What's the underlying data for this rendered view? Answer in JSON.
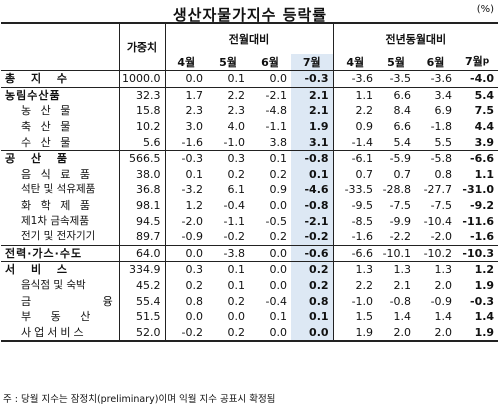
{
  "title": "생산자물가지수 등락률",
  "unit": "(%)",
  "header": {
    "weight": "가중치",
    "group_mom": "전월대비",
    "group_yoy": "전년동월대비",
    "months": [
      "4월",
      "5월",
      "6월",
      "7월"
    ],
    "prelim_mark": "p"
  },
  "rows": [
    {
      "label": "총 지 수",
      "weight": "1000.0",
      "mom": [
        "0.0",
        "0.1",
        "0.0",
        "-0.3"
      ],
      "yoy": [
        "-3.6",
        "-3.5",
        "-3.6",
        "-4.0"
      ]
    },
    {
      "label": "농림수산품",
      "weight": "32.3",
      "mom": [
        "1.7",
        "2.2",
        "-2.1",
        "2.1"
      ],
      "yoy": [
        "1.1",
        "6.6",
        "3.4",
        "5.4"
      ]
    },
    {
      "label": "농 산 물",
      "weight": "15.8",
      "mom": [
        "2.3",
        "2.3",
        "-4.8",
        "2.1"
      ],
      "yoy": [
        "2.2",
        "8.4",
        "6.9",
        "7.5"
      ]
    },
    {
      "label": "축 산 물",
      "weight": "10.2",
      "mom": [
        "3.0",
        "4.0",
        "-1.1",
        "1.9"
      ],
      "yoy": [
        "0.9",
        "6.6",
        "-1.8",
        "4.4"
      ]
    },
    {
      "label": "수 산 물",
      "weight": "5.6",
      "mom": [
        "-1.6",
        "-1.0",
        "3.8",
        "3.1"
      ],
      "yoy": [
        "-1.4",
        "5.4",
        "5.5",
        "3.9"
      ]
    },
    {
      "label": "공 산 품",
      "weight": "566.5",
      "mom": [
        "-0.3",
        "0.3",
        "0.1",
        "-0.8"
      ],
      "yoy": [
        "-6.1",
        "-5.9",
        "-5.8",
        "-6.6"
      ]
    },
    {
      "label": "음 식 료 품",
      "weight": "38.0",
      "mom": [
        "0.1",
        "0.2",
        "0.2",
        "0.1"
      ],
      "yoy": [
        "0.7",
        "0.7",
        "0.8",
        "1.1"
      ]
    },
    {
      "label": "석탄 및 석유제품",
      "weight": "36.8",
      "mom": [
        "-3.2",
        "6.1",
        "0.9",
        "-4.6"
      ],
      "yoy": [
        "-33.5",
        "-28.8",
        "-27.7",
        "-31.0"
      ]
    },
    {
      "label": "화 학 제 품",
      "weight": "98.1",
      "mom": [
        "1.2",
        "-0.4",
        "0.0",
        "-0.8"
      ],
      "yoy": [
        "-9.5",
        "-7.5",
        "-7.5",
        "-9.2"
      ]
    },
    {
      "label": "제1차 금속제품",
      "weight": "94.5",
      "mom": [
        "-2.0",
        "-1.1",
        "-0.5",
        "-2.1"
      ],
      "yoy": [
        "-8.5",
        "-9.9",
        "-10.4",
        "-11.6"
      ]
    },
    {
      "label": "전기 및 전자기기",
      "weight": "89.7",
      "mom": [
        "-0.9",
        "-0.2",
        "0.2",
        "-0.2"
      ],
      "yoy": [
        "-1.6",
        "-2.2",
        "-2.0",
        "-1.6"
      ]
    },
    {
      "label": "전력·가스·수도",
      "weight": "64.0",
      "mom": [
        "0.0",
        "-3.8",
        "0.0",
        "-0.6"
      ],
      "yoy": [
        "-6.6",
        "-10.1",
        "-10.2",
        "-10.3"
      ]
    },
    {
      "label": "서 비 스",
      "weight": "334.9",
      "mom": [
        "0.3",
        "0.1",
        "0.0",
        "0.2"
      ],
      "yoy": [
        "1.3",
        "1.3",
        "1.3",
        "1.2"
      ]
    },
    {
      "label": "음식점 및 숙박",
      "weight": "45.2",
      "mom": [
        "0.2",
        "0.1",
        "0.0",
        "0.2"
      ],
      "yoy": [
        "2.2",
        "2.1",
        "2.0",
        "1.9"
      ]
    },
    {
      "label": "금 융",
      "weight": "55.4",
      "mom": [
        "0.8",
        "0.2",
        "-0.4",
        "0.8"
      ],
      "yoy": [
        "-1.0",
        "-0.8",
        "-0.9",
        "-0.3"
      ]
    },
    {
      "label": "부 동 산",
      "weight": "51.5",
      "mom": [
        "0.0",
        "0.0",
        "0.1",
        "0.1"
      ],
      "yoy": [
        "1.5",
        "1.4",
        "1.4",
        "1.4"
      ]
    },
    {
      "label": "사업서비스",
      "weight": "52.0",
      "mom": [
        "-0.2",
        "0.2",
        "0.0",
        "0.0"
      ],
      "yoy": [
        "1.9",
        "2.0",
        "2.0",
        "1.9"
      ]
    }
  ],
  "note": "주 : 당월 지수는 잠정치(preliminary)이며 익월 지수 공표시 확정됨"
}
